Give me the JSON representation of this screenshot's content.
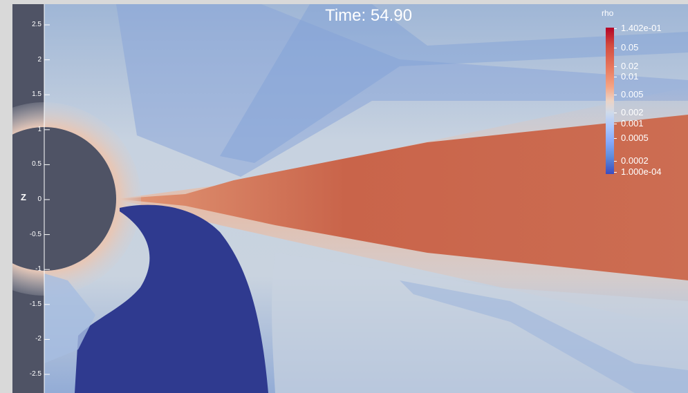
{
  "time_label": "Time: 54.90",
  "axis": {
    "title": "Z",
    "ticks": [
      "2.5",
      "2",
      "1.5",
      "1",
      "0.5",
      "0",
      "-0.5",
      "-1",
      "-1.5",
      "-2",
      "-2.5"
    ]
  },
  "legend": {
    "title": "rho",
    "labels": [
      "1.402e-01",
      "0.05",
      "0.02",
      "0.01",
      "0.005",
      "0.002",
      "0.001",
      "0.0005",
      "0.0002",
      "1.000e-04"
    ]
  },
  "colors": {
    "background": "#d9d9d9",
    "star": "#4f5365",
    "low": "#2f3a8f",
    "mid": "#cfd6df",
    "high": "#c0583f"
  }
}
